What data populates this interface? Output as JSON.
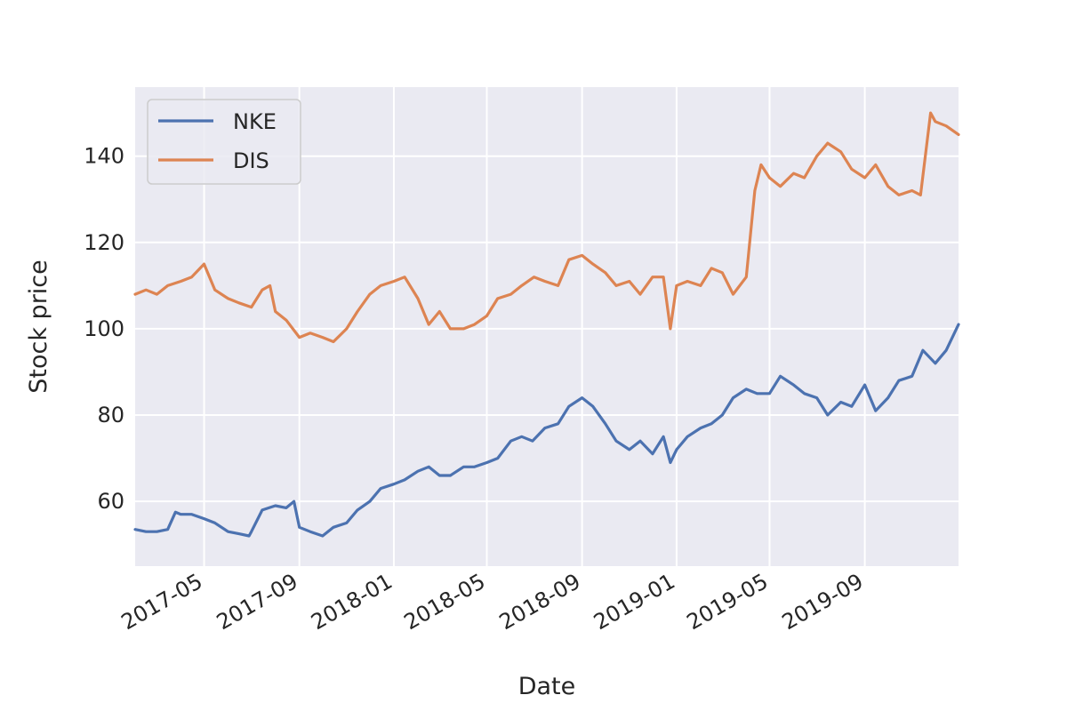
{
  "chart_data": {
    "type": "line",
    "xlabel": "Date",
    "ylabel": "Stock price",
    "xlim": [
      "2017-02-01",
      "2019-12-31"
    ],
    "ylim": [
      45,
      156
    ],
    "x_ticks": [
      "2017-05",
      "2017-09",
      "2018-01",
      "2018-05",
      "2018-09",
      "2019-01",
      "2019-05",
      "2019-09"
    ],
    "y_ticks": [
      60,
      80,
      100,
      120,
      140
    ],
    "grid": true,
    "legend_position": "upper left",
    "colors": {
      "background": "#EAEAF2",
      "grid": "#FFFFFF",
      "NKE": "#4C72B0",
      "DIS": "#DD8452"
    },
    "series": [
      {
        "name": "NKE",
        "x": [
          "2017-02-01",
          "2017-02-15",
          "2017-03-01",
          "2017-03-15",
          "2017-03-25",
          "2017-04-01",
          "2017-04-15",
          "2017-05-01",
          "2017-05-15",
          "2017-06-01",
          "2017-06-15",
          "2017-06-28",
          "2017-07-01",
          "2017-07-15",
          "2017-08-01",
          "2017-08-15",
          "2017-08-25",
          "2017-09-01",
          "2017-09-15",
          "2017-10-01",
          "2017-10-15",
          "2017-11-01",
          "2017-11-15",
          "2017-12-01",
          "2017-12-15",
          "2018-01-01",
          "2018-01-15",
          "2018-02-01",
          "2018-02-15",
          "2018-03-01",
          "2018-03-15",
          "2018-04-01",
          "2018-04-15",
          "2018-05-01",
          "2018-05-15",
          "2018-06-01",
          "2018-06-15",
          "2018-06-29",
          "2018-07-15",
          "2018-08-01",
          "2018-08-15",
          "2018-09-01",
          "2018-09-15",
          "2018-10-01",
          "2018-10-15",
          "2018-11-01",
          "2018-11-15",
          "2018-12-01",
          "2018-12-15",
          "2018-12-24",
          "2019-01-01",
          "2019-01-15",
          "2019-02-01",
          "2019-02-15",
          "2019-03-01",
          "2019-03-15",
          "2019-04-01",
          "2019-04-15",
          "2019-05-01",
          "2019-05-15",
          "2019-06-01",
          "2019-06-15",
          "2019-07-01",
          "2019-07-15",
          "2019-08-01",
          "2019-08-15",
          "2019-09-01",
          "2019-09-15",
          "2019-10-01",
          "2019-10-15",
          "2019-11-01",
          "2019-11-15",
          "2019-12-01",
          "2019-12-15",
          "2019-12-31"
        ],
        "values": [
          53.5,
          53,
          53,
          53.5,
          57.5,
          57,
          57,
          56,
          55,
          53,
          52.5,
          52,
          53,
          58,
          59,
          58.5,
          60,
          54,
          53,
          52,
          54,
          55,
          58,
          60,
          63,
          64,
          65,
          67,
          68,
          66,
          66,
          68,
          68,
          69,
          70,
          74,
          75,
          74,
          77,
          78,
          82,
          84,
          82,
          78,
          74,
          72,
          74,
          71,
          75,
          69,
          72,
          75,
          77,
          78,
          80,
          84,
          86,
          85,
          85,
          89,
          87,
          85,
          84,
          80,
          83,
          82,
          87,
          81,
          84,
          88,
          89,
          95,
          92,
          95,
          101
        ]
      },
      {
        "name": "DIS",
        "x": [
          "2017-02-01",
          "2017-02-15",
          "2017-03-01",
          "2017-03-15",
          "2017-04-01",
          "2017-04-15",
          "2017-05-01",
          "2017-05-15",
          "2017-06-01",
          "2017-06-15",
          "2017-07-01",
          "2017-07-15",
          "2017-07-25",
          "2017-08-01",
          "2017-08-15",
          "2017-09-01",
          "2017-09-15",
          "2017-10-01",
          "2017-10-15",
          "2017-11-01",
          "2017-11-15",
          "2017-12-01",
          "2017-12-15",
          "2018-01-01",
          "2018-01-15",
          "2018-02-01",
          "2018-02-15",
          "2018-03-01",
          "2018-03-15",
          "2018-04-01",
          "2018-04-15",
          "2018-05-01",
          "2018-05-15",
          "2018-06-01",
          "2018-06-15",
          "2018-07-01",
          "2018-07-15",
          "2018-08-01",
          "2018-08-15",
          "2018-09-01",
          "2018-09-15",
          "2018-10-01",
          "2018-10-15",
          "2018-11-01",
          "2018-11-15",
          "2018-12-01",
          "2018-12-15",
          "2018-12-24",
          "2019-01-01",
          "2019-01-15",
          "2019-02-01",
          "2019-02-15",
          "2019-03-01",
          "2019-03-15",
          "2019-04-01",
          "2019-04-12",
          "2019-04-20",
          "2019-05-01",
          "2019-05-15",
          "2019-06-01",
          "2019-06-15",
          "2019-07-01",
          "2019-07-15",
          "2019-08-01",
          "2019-08-15",
          "2019-09-01",
          "2019-09-15",
          "2019-10-01",
          "2019-10-15",
          "2019-11-01",
          "2019-11-12",
          "2019-11-25",
          "2019-12-01",
          "2019-12-15",
          "2019-12-31"
        ],
        "values": [
          108,
          109,
          108,
          110,
          111,
          112,
          115,
          109,
          107,
          106,
          105,
          109,
          110,
          104,
          102,
          98,
          99,
          98,
          97,
          100,
          104,
          108,
          110,
          111,
          112,
          107,
          101,
          104,
          100,
          100,
          101,
          103,
          107,
          108,
          110,
          112,
          111,
          110,
          116,
          117,
          115,
          113,
          110,
          111,
          108,
          112,
          112,
          100,
          110,
          111,
          110,
          114,
          113,
          108,
          112,
          132,
          138,
          135,
          133,
          136,
          135,
          140,
          143,
          141,
          137,
          135,
          138,
          133,
          131,
          132,
          131,
          150,
          148,
          147,
          145
        ]
      }
    ]
  }
}
